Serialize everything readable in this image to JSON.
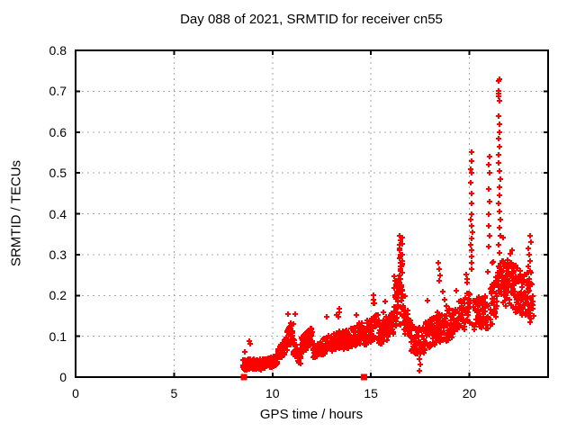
{
  "page": {
    "background": "#ffffff"
  },
  "chart_data": {
    "type": "scatter",
    "title": "Day 088 of 2021, SRMTID for receiver cn55",
    "xlabel": "GPS time / hours",
    "ylabel": "SRMTID / TECUs",
    "xlim": [
      0,
      24
    ],
    "ylim": [
      0,
      0.8
    ],
    "xticks": [
      0,
      5,
      10,
      15,
      20
    ],
    "xticklabels": [
      "0",
      "5",
      "10",
      "15",
      "20"
    ],
    "yticks": [
      0,
      0.1,
      0.2,
      0.3,
      0.4,
      0.5,
      0.6,
      0.7,
      0.8
    ],
    "yticklabels": [
      "0",
      "0.1",
      "0.2",
      "0.3",
      "0.4",
      "0.5",
      "0.6",
      "0.7",
      "0.8"
    ],
    "grid": {
      "style": "dotted",
      "color": "#a8a8a8",
      "on": true
    },
    "legend": "none",
    "axis_color": "#000000",
    "marker": {
      "shape": "plus",
      "color": "#ff0000",
      "size": 7
    },
    "series_name": "SRMTID",
    "data_time_range_hours": [
      8.5,
      23.25
    ],
    "peaks": [
      {
        "t": 16.5,
        "y": 0.345
      },
      {
        "t": 20.1,
        "y": 0.55
      },
      {
        "t": 21.0,
        "y": 0.54
      },
      {
        "t": 21.5,
        "y": 0.73
      },
      {
        "t": 23.05,
        "y": 0.345
      }
    ],
    "baseline_markers": {
      "shape": "filled-square",
      "color": "#ff0000",
      "points": [
        [
          8.55,
          0
        ],
        [
          14.65,
          0
        ]
      ]
    },
    "scatter": {
      "seed": 20210388,
      "segments": [
        [
          8.5,
          9.4,
          110,
          0.03,
          0.032,
          0.013,
          0.04,
          0.05
        ],
        [
          9.4,
          10.2,
          90,
          0.03,
          0.04,
          0.013,
          0.02,
          0.03
        ],
        [
          10.2,
          10.75,
          55,
          0.045,
          0.085,
          0.018,
          0.05,
          0.03
        ],
        [
          10.75,
          11.05,
          35,
          0.095,
          0.105,
          0.025,
          0.1,
          0.05
        ],
        [
          11.05,
          11.45,
          40,
          0.075,
          0.048,
          0.02,
          0.02,
          0.02
        ],
        [
          11.45,
          12.05,
          60,
          0.08,
          0.1,
          0.022,
          0.03,
          0.02
        ],
        [
          12.05,
          12.55,
          50,
          0.06,
          0.07,
          0.018,
          0.02,
          0.02
        ],
        [
          12.55,
          13.6,
          95,
          0.075,
          0.095,
          0.022,
          0.05,
          0.055
        ],
        [
          13.6,
          14.65,
          95,
          0.09,
          0.105,
          0.025,
          0.04,
          0.04
        ],
        [
          14.65,
          15.35,
          65,
          0.105,
          0.125,
          0.03,
          0.08,
          0.06
        ],
        [
          15.35,
          16.15,
          70,
          0.105,
          0.13,
          0.03,
          0.05,
          0.05
        ],
        [
          16.15,
          16.42,
          28,
          0.14,
          0.2,
          0.045,
          0.3,
          0.08
        ],
        [
          16.42,
          16.62,
          26,
          0.18,
          0.2,
          0.06,
          0.4,
          0.1
        ],
        [
          16.62,
          17.05,
          40,
          0.15,
          0.11,
          0.035,
          0.05,
          0.05
        ],
        [
          17.05,
          17.75,
          60,
          0.095,
          0.085,
          0.035,
          0.02,
          0.03
        ],
        [
          17.75,
          18.7,
          85,
          0.1,
          0.125,
          0.035,
          0.08,
          0.09
        ],
        [
          18.7,
          19.55,
          75,
          0.12,
          0.15,
          0.038,
          0.06,
          0.07
        ],
        [
          19.55,
          20.05,
          45,
          0.15,
          0.175,
          0.042,
          0.1,
          0.08
        ],
        [
          20.2,
          20.95,
          65,
          0.148,
          0.16,
          0.045,
          0.08,
          0.06
        ],
        [
          21.05,
          21.4,
          35,
          0.17,
          0.2,
          0.05,
          0.1,
          0.08
        ],
        [
          21.4,
          21.7,
          25,
          0.215,
          0.245,
          0.05,
          0.05,
          0.05
        ],
        [
          21.7,
          22.5,
          90,
          0.24,
          0.21,
          0.06,
          0.1,
          0.09
        ],
        [
          22.5,
          23.25,
          70,
          0.21,
          0.195,
          0.055,
          0.08,
          0.08
        ]
      ],
      "clusters": [
        {
          "t": 16.49,
          "dt": 0.06,
          "ys": [
            0.345,
            0.335,
            0.325,
            0.315,
            0.3,
            0.29,
            0.28,
            0.27,
            0.26,
            0.25,
            0.24,
            0.23,
            0.22
          ]
        },
        {
          "t": 16.57,
          "dt": 0.05,
          "ys": [
            0.3,
            0.275,
            0.255
          ]
        },
        {
          "t": 20.1,
          "dt": 0.09,
          "ys": [
            0.55,
            0.53,
            0.51,
            0.5,
            0.475,
            0.45,
            0.425,
            0.4,
            0.385,
            0.37,
            0.355,
            0.34,
            0.325,
            0.31,
            0.295,
            0.28,
            0.265
          ]
        },
        {
          "t": 21.0,
          "dt": 0.08,
          "ys": [
            0.54,
            0.52,
            0.5,
            0.46,
            0.43,
            0.4,
            0.37,
            0.345,
            0.32
          ]
        },
        {
          "t": 21.52,
          "dt": 0.1,
          "ys": [
            0.73,
            0.725,
            0.7,
            0.695,
            0.688,
            0.677,
            0.64,
            0.62,
            0.6,
            0.585,
            0.565,
            0.545,
            0.525,
            0.505,
            0.485,
            0.465,
            0.445,
            0.425,
            0.405,
            0.385,
            0.365,
            0.345,
            0.325,
            0.305
          ]
        },
        {
          "t": 23.05,
          "dt": 0.15,
          "ys": [
            0.345,
            0.33,
            0.315,
            0.3,
            0.285,
            0.27,
            0.255,
            0.24,
            0.225,
            0.21,
            0.195,
            0.18,
            0.165,
            0.15,
            0.135
          ]
        },
        {
          "t": 18.45,
          "dt": 0.12,
          "ys": [
            0.28,
            0.265,
            0.25,
            0.235
          ]
        },
        {
          "t": 17.48,
          "dt": 0.08,
          "ys": [
            0.015,
            0.03,
            0.045
          ]
        },
        {
          "t": 8.82,
          "dt": 0.1,
          "ys": [
            0.088,
            0.082
          ]
        },
        {
          "t": 10.93,
          "dt": 0.06,
          "ys": [
            0.132,
            0.125,
            0.118
          ]
        },
        {
          "t": 11.15,
          "dt": 0.04,
          "ys": [
            0.155
          ]
        },
        {
          "t": 13.38,
          "dt": 0.08,
          "ys": [
            0.168,
            0.158,
            0.148
          ]
        },
        {
          "t": 15.12,
          "dt": 0.07,
          "ys": [
            0.2,
            0.19,
            0.18
          ]
        }
      ]
    }
  }
}
